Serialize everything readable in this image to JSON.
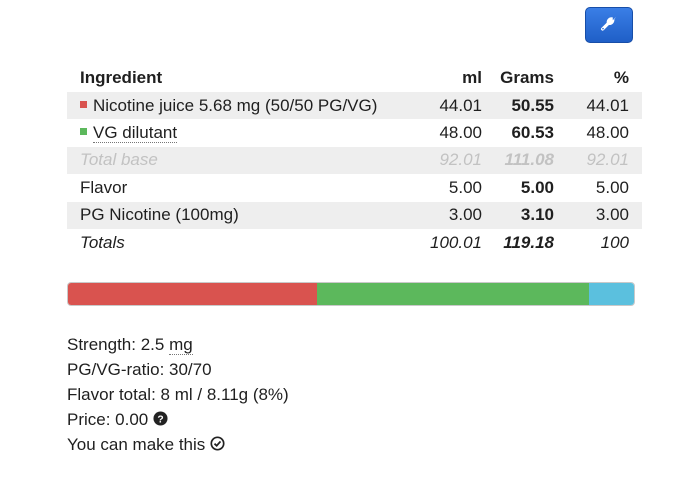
{
  "toolbar": {
    "settings_icon": "wrench-icon",
    "accent": "#2a6fd6"
  },
  "table": {
    "headers": {
      "ingredient": "Ingredient",
      "ml": "ml",
      "grams": "Grams",
      "percent": "%"
    },
    "rows": [
      {
        "name": "Nicotine juice 5.68 mg (50/50 PG/VG)",
        "ml": "44.01",
        "grams": "50.55",
        "percent": "44.01",
        "color": "#d9534f"
      },
      {
        "name": "VG dilutant",
        "ml": "48.00",
        "grams": "60.53",
        "percent": "48.00",
        "color": "#5cb85c"
      },
      {
        "name": "Total base",
        "ml": "92.01",
        "grams": "111.08",
        "percent": "92.01"
      },
      {
        "name": "Flavor",
        "ml": "5.00",
        "grams": "5.00",
        "percent": "5.00"
      },
      {
        "name": "PG Nicotine (100mg)",
        "ml": "3.00",
        "grams": "3.10",
        "percent": "3.00"
      },
      {
        "name": "Totals",
        "ml": "100.01",
        "grams": "119.18",
        "percent": "100"
      }
    ]
  },
  "progress": {
    "segments": [
      {
        "label": "nicotine-juice",
        "fraction": 0.44,
        "color": "#d9534f"
      },
      {
        "label": "vg-dilutant",
        "fraction": 0.48,
        "color": "#5cb85c"
      },
      {
        "label": "remainder",
        "fraction": 0.08,
        "color": "#5bc0de"
      }
    ]
  },
  "summary": {
    "strength_label": "Strength: ",
    "strength_value": "2.5",
    "strength_unit": "mg",
    "ratio": "PG/VG-ratio: 30/70",
    "flavor_total": "Flavor total: 8 ml / 8.11g (8%)",
    "price": "Price: 0.00",
    "price_icon": "help-circle-icon",
    "can_make": "You can make this",
    "can_make_icon": "check-circle-icon"
  }
}
